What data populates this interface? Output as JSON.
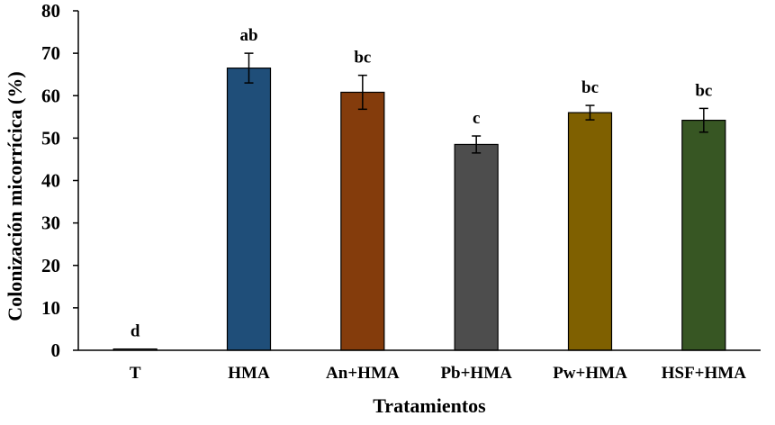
{
  "chart_data": {
    "type": "bar",
    "title": "",
    "xlabel": "Tratamientos",
    "ylabel": "Colonización micorrícica (%)",
    "ylim": [
      0,
      80
    ],
    "yticks": [
      "0",
      "10",
      "20",
      "30",
      "40",
      "50",
      "60",
      "70",
      "80"
    ],
    "grid": false,
    "legend": "none",
    "categories": [
      "T",
      "HMA",
      "An+HMA",
      "Pb+HMA",
      "Pw+HMA",
      "HSF+HMA"
    ],
    "values": [
      0.3,
      66.5,
      60.8,
      48.5,
      56.0,
      54.2
    ],
    "errors": [
      0,
      3.5,
      4.0,
      2.0,
      1.7,
      2.8
    ],
    "significance_letters": [
      "d",
      "ab",
      "bc",
      "c",
      "bc",
      "bc"
    ],
    "colors": [
      "#ffffff",
      "#1f4e79",
      "#843c0c",
      "#4d4d4d",
      "#7f6000",
      "#375623"
    ],
    "bar_outline": "#000000"
  }
}
